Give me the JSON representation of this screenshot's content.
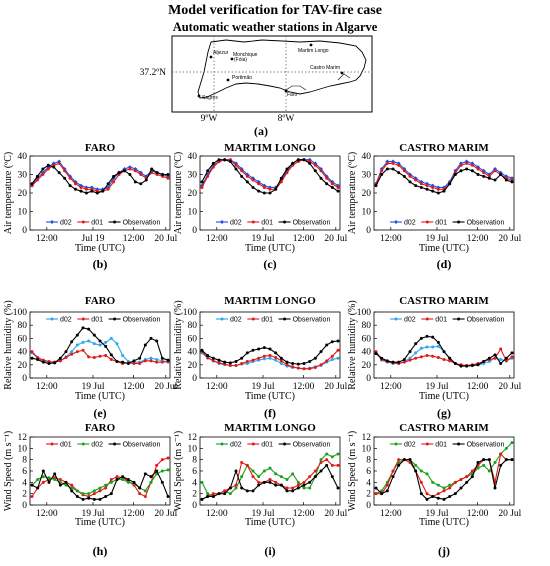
{
  "figure": {
    "title": "Model verification for TAV-fire case",
    "map": {
      "title": "Automatic weather stations in Algarve",
      "lat_label": "37.2ºN",
      "lon_labels": [
        "9ºW",
        "8ºW"
      ],
      "stations": [
        {
          "name": "Aljezur"
        },
        {
          "name": "Monchique"
        },
        {
          "name": "(Fóia)"
        },
        {
          "name": "Martim Longo"
        },
        {
          "name": "Castro Marim"
        },
        {
          "name": "Portimão"
        },
        {
          "name": "Sagres"
        },
        {
          "name": "Faro"
        }
      ],
      "letter": "(a)"
    }
  },
  "colors": {
    "d02": "#1f4fe0",
    "d01": "#e01a1a",
    "observation": "#000000",
    "d02_rh": "#2aa7ef",
    "d02_wind": "#1aa11a"
  },
  "chart_data": [
    {
      "id": "b",
      "type": "line",
      "title": "FARO",
      "letter": "(b)",
      "xlabel": "Time (UTC)",
      "ylabel": "Air temperature (ºC)",
      "x_ticks": [
        "12:00",
        "Jul 19",
        "12:00",
        "20 Jul"
      ],
      "ylim": [
        0,
        40
      ],
      "y_ticks": [
        "0",
        "10",
        "20",
        "30",
        "40"
      ],
      "legend": "bottom",
      "legend_items": [
        "d02",
        "d01",
        "Observation"
      ],
      "series": [
        {
          "name": "d02",
          "color": "d02",
          "values": [
            24,
            28,
            31,
            34,
            36,
            37,
            33,
            29,
            26,
            24,
            23,
            23,
            22,
            22,
            23,
            28,
            31,
            33,
            34,
            33,
            31,
            29,
            32,
            31,
            30,
            29
          ]
        },
        {
          "name": "d01",
          "color": "d01",
          "values": [
            24,
            27,
            30,
            33,
            35,
            36,
            32,
            28,
            25,
            23,
            22,
            22,
            21,
            21,
            22,
            26,
            30,
            32,
            33,
            32,
            30,
            28,
            31,
            30,
            29,
            28
          ]
        },
        {
          "name": "Observation",
          "color": "observation",
          "values": [
            25,
            29,
            33,
            35,
            34,
            31,
            28,
            24,
            22,
            21,
            20,
            21,
            20,
            21,
            25,
            29,
            31,
            32,
            30,
            26,
            25,
            27,
            33,
            31,
            30,
            30
          ]
        }
      ]
    },
    {
      "id": "c",
      "type": "line",
      "title": "MARTIM LONGO",
      "letter": "(c)",
      "xlabel": "Time (UTC)",
      "ylabel": "Air temperature (ºC)",
      "x_ticks": [
        "12:00",
        "19 Jul",
        "12:00",
        "20 Jul"
      ],
      "ylim": [
        0,
        40
      ],
      "y_ticks": [
        "0",
        "10",
        "20",
        "30",
        "40"
      ],
      "legend": "bottom",
      "legend_items": [
        "d02",
        "d01",
        "Observation"
      ],
      "series": [
        {
          "name": "d02",
          "color": "d02",
          "values": [
            24,
            30,
            35,
            37,
            38,
            38,
            36,
            33,
            30,
            28,
            26,
            24,
            23,
            23,
            27,
            32,
            36,
            38,
            38,
            38,
            36,
            33,
            29,
            26,
            24
          ]
        },
        {
          "name": "d01",
          "color": "d01",
          "values": [
            23,
            29,
            34,
            37,
            38,
            38,
            35,
            32,
            29,
            27,
            25,
            23,
            22,
            22,
            26,
            31,
            35,
            37,
            38,
            37,
            35,
            32,
            28,
            25,
            23
          ]
        },
        {
          "name": "Observation",
          "color": "observation",
          "values": [
            26,
            32,
            36,
            38,
            38,
            37,
            33,
            29,
            26,
            23,
            21,
            20,
            20,
            22,
            28,
            33,
            36,
            38,
            38,
            36,
            32,
            28,
            25,
            23,
            21
          ]
        }
      ]
    },
    {
      "id": "d",
      "type": "line",
      "title": "CASTRO MARIM",
      "letter": "(d)",
      "xlabel": "Time (UTC)",
      "ylabel": "Air temperature (ºC)",
      "x_ticks": [
        "12:00",
        "19 Jul",
        "12:00",
        "20 Jul"
      ],
      "ylim": [
        0,
        40
      ],
      "y_ticks": [
        "0",
        "10",
        "20",
        "30",
        "40"
      ],
      "legend": "bottom",
      "legend_items": [
        "d02",
        "d01",
        "Observation"
      ],
      "series": [
        {
          "name": "d02",
          "color": "d02",
          "values": [
            25,
            33,
            37,
            37,
            36,
            33,
            30,
            28,
            26,
            25,
            24,
            23,
            23,
            26,
            32,
            36,
            37,
            36,
            34,
            32,
            30,
            33,
            31,
            29,
            28
          ]
        },
        {
          "name": "d01",
          "color": "d01",
          "values": [
            25,
            32,
            36,
            36,
            35,
            32,
            29,
            27,
            25,
            24,
            23,
            22,
            22,
            25,
            31,
            35,
            36,
            35,
            33,
            31,
            29,
            32,
            30,
            28,
            27
          ]
        },
        {
          "name": "Observation",
          "color": "observation",
          "values": [
            24,
            30,
            33,
            33,
            31,
            29,
            26,
            24,
            23,
            22,
            21,
            20,
            21,
            25,
            30,
            32,
            33,
            32,
            30,
            29,
            28,
            27,
            30,
            27,
            26
          ]
        }
      ]
    },
    {
      "id": "e",
      "type": "line",
      "title": "FARO",
      "letter": "(e)",
      "xlabel": "Time (UTC)",
      "ylabel": "Relative humidity (%)",
      "x_ticks": [
        "12:00",
        "19 Jul",
        "12:00",
        "20 Jul"
      ],
      "ylim": [
        0,
        100
      ],
      "y_ticks": [
        "0",
        "20",
        "40",
        "60",
        "80",
        "100"
      ],
      "legend": "top",
      "legend_items": [
        "d02",
        "d01",
        "Observation"
      ],
      "series": [
        {
          "name": "d02",
          "color": "d02_rh",
          "values": [
            38,
            30,
            26,
            24,
            24,
            26,
            32,
            40,
            50,
            54,
            56,
            52,
            50,
            54,
            60,
            52,
            34,
            25,
            24,
            24,
            28,
            30,
            28,
            26,
            24
          ]
        },
        {
          "name": "d01",
          "color": "d01",
          "values": [
            40,
            31,
            27,
            25,
            24,
            26,
            31,
            36,
            40,
            42,
            32,
            31,
            33,
            34,
            28,
            25,
            22,
            23,
            22,
            22,
            26,
            26,
            24,
            24,
            25
          ]
        },
        {
          "name": "Observation",
          "color": "observation",
          "values": [
            30,
            28,
            24,
            22,
            23,
            30,
            40,
            55,
            65,
            76,
            74,
            65,
            56,
            48,
            35,
            25,
            24,
            22,
            26,
            30,
            50,
            60,
            56,
            30,
            27
          ]
        }
      ]
    },
    {
      "id": "f",
      "type": "line",
      "title": "MARTIM LONGO",
      "letter": "(f)",
      "xlabel": "Time (UTC)",
      "ylabel": "Relative humidity (%)",
      "x_ticks": [
        "12:00",
        "19 Jul",
        "12:00",
        "20 Jul"
      ],
      "ylim": [
        0,
        100
      ],
      "y_ticks": [
        "0",
        "20",
        "40",
        "60",
        "80",
        "100"
      ],
      "legend": "top",
      "legend_items": [
        "d02",
        "d01",
        "Observation"
      ],
      "series": [
        {
          "name": "d02",
          "color": "d02_rh",
          "values": [
            38,
            30,
            26,
            22,
            20,
            19,
            19,
            21,
            22,
            25,
            27,
            29,
            30,
            27,
            22,
            18,
            16,
            15,
            14,
            15,
            17,
            19,
            24,
            28,
            30
          ]
        },
        {
          "name": "d01",
          "color": "d01",
          "values": [
            40,
            31,
            26,
            23,
            21,
            19,
            19,
            22,
            25,
            27,
            30,
            33,
            34,
            31,
            26,
            20,
            17,
            15,
            14,
            14,
            16,
            20,
            26,
            33,
            42
          ]
        },
        {
          "name": "Observation",
          "color": "observation",
          "values": [
            42,
            34,
            30,
            27,
            24,
            23,
            25,
            30,
            38,
            42,
            44,
            46,
            44,
            38,
            30,
            24,
            22,
            21,
            22,
            25,
            30,
            40,
            50,
            55,
            56
          ]
        }
      ]
    },
    {
      "id": "g",
      "type": "line",
      "title": "CASTRO MARIM",
      "letter": "(g)",
      "xlabel": "Time (UTC)",
      "ylabel": "Relative humidity (%)",
      "x_ticks": [
        "12:00",
        "19 Jul",
        "12:00",
        "20 Jul"
      ],
      "ylim": [
        0,
        100
      ],
      "y_ticks": [
        "0",
        "20",
        "40",
        "60",
        "80",
        "100"
      ],
      "legend": "top",
      "legend_items": [
        "d02",
        "d01",
        "Observation"
      ],
      "series": [
        {
          "name": "d02",
          "color": "d02_rh",
          "values": [
            38,
            27,
            24,
            22,
            22,
            25,
            30,
            38,
            45,
            47,
            47,
            48,
            40,
            30,
            22,
            19,
            18,
            19,
            20,
            22,
            25,
            30,
            28,
            26,
            30
          ]
        },
        {
          "name": "d01",
          "color": "d01",
          "values": [
            40,
            28,
            25,
            23,
            22,
            24,
            27,
            30,
            32,
            34,
            33,
            31,
            28,
            26,
            22,
            20,
            19,
            20,
            22,
            25,
            28,
            30,
            44,
            26,
            32
          ]
        },
        {
          "name": "Observation",
          "color": "observation",
          "values": [
            37,
            30,
            26,
            24,
            24,
            28,
            40,
            52,
            60,
            63,
            62,
            54,
            40,
            30,
            22,
            18,
            18,
            19,
            20,
            25,
            30,
            35,
            22,
            30,
            38
          ]
        }
      ]
    },
    {
      "id": "h",
      "type": "line",
      "title": "FARO",
      "letter": "(h)",
      "xlabel": "Time (UTC)",
      "ylabel": "Wind Speed (m s⁻¹)",
      "x_ticks": [
        "12:00",
        "19 Jul",
        "12:00",
        "20 Jul"
      ],
      "ylim": [
        0,
        12
      ],
      "y_ticks": [
        "0",
        "2",
        "4",
        "6",
        "8",
        "10",
        "12"
      ],
      "legend": "top",
      "legend_items": [
        "d01",
        "d02",
        "Observation"
      ],
      "series": [
        {
          "name": "d01",
          "color": "d01",
          "values": [
            1.5,
            3,
            4,
            4.5,
            4.8,
            4.5,
            4,
            3.5,
            2.5,
            1.8,
            1.5,
            2,
            2.5,
            3,
            4.5,
            5,
            4.8,
            4.2,
            3.5,
            2,
            1.5,
            4,
            7,
            8,
            8.3
          ]
        },
        {
          "name": "d02",
          "color": "d02_wind",
          "values": [
            3.5,
            4.5,
            5,
            4.8,
            4.5,
            4,
            3.5,
            3,
            2.5,
            2,
            2,
            2.5,
            3,
            3.5,
            4,
            4.5,
            4.5,
            4,
            3.8,
            3,
            2.5,
            4,
            5.5,
            6,
            6.2
          ]
        },
        {
          "name": "Observation",
          "color": "observation",
          "values": [
            3.5,
            3,
            6,
            4,
            5.5,
            3.5,
            4,
            2.5,
            1.5,
            1,
            1.2,
            1,
            1,
            1.5,
            2,
            4.5,
            5,
            4.5,
            4,
            3,
            5.5,
            5,
            6,
            4,
            1.5
          ]
        }
      ]
    },
    {
      "id": "i",
      "type": "line",
      "title": "MARTIM LONGO",
      "letter": "(i)",
      "xlabel": "Time (UTC)",
      "ylabel": "Wind Speed (m s⁻¹)",
      "x_ticks": [
        "12:00",
        "19 Jul",
        "12:00",
        "20 Jul"
      ],
      "ylim": [
        0,
        12
      ],
      "y_ticks": [
        "0",
        "2",
        "4",
        "6",
        "8",
        "10",
        "12"
      ],
      "legend": "top",
      "legend_items": [
        "d02",
        "d01",
        "Observation"
      ],
      "series": [
        {
          "name": "d02",
          "color": "d02_wind",
          "values": [
            4,
            2,
            1.5,
            2,
            2.5,
            2,
            3,
            5,
            7,
            6,
            5,
            6,
            6.5,
            5.5,
            5,
            4.5,
            5.5,
            4,
            3,
            3,
            5,
            8,
            9,
            8.5,
            9
          ]
        },
        {
          "name": "d01",
          "color": "d01",
          "values": [
            1,
            1.5,
            2,
            2,
            2.5,
            3,
            3.5,
            7.5,
            7,
            5,
            4,
            4,
            4.5,
            4,
            3.5,
            3,
            3,
            3.5,
            4,
            5,
            6,
            7.5,
            8,
            7,
            7
          ]
        },
        {
          "name": "Observation",
          "color": "observation",
          "values": [
            1,
            1.5,
            1.5,
            2,
            2,
            3,
            6,
            3,
            2.5,
            2.5,
            3.5,
            4,
            4,
            3.5,
            3.5,
            2.5,
            2.5,
            3,
            3.5,
            4,
            5,
            6,
            7,
            5,
            3
          ]
        }
      ]
    },
    {
      "id": "j",
      "type": "line",
      "title": "CASTRO MARIM",
      "letter": "(j)",
      "xlabel": "Time (UTC)",
      "ylabel": "Wind Speed (m s⁻¹)",
      "x_ticks": [
        "12:00",
        "19 Jul",
        "12:00",
        "20 Jul"
      ],
      "ylim": [
        0,
        12
      ],
      "y_ticks": [
        "0",
        "2",
        "4",
        "6",
        "8",
        "10",
        "12"
      ],
      "legend": "top",
      "legend_items": [
        "d02",
        "d01",
        "Observation"
      ],
      "series": [
        {
          "name": "d02",
          "color": "d02_wind",
          "values": [
            2,
            2.5,
            4,
            6,
            7.5,
            8,
            8,
            7,
            6,
            5.5,
            4,
            3.5,
            3,
            3.5,
            4,
            4.5,
            5,
            5.5,
            6.5,
            7,
            6,
            7.5,
            9,
            10,
            11
          ]
        },
        {
          "name": "d01",
          "color": "d01",
          "values": [
            2,
            2,
            3.5,
            6,
            8,
            8,
            7.5,
            6,
            4,
            2,
            1.5,
            2,
            2.5,
            3,
            4,
            4.5,
            5,
            6,
            7,
            8,
            8,
            4,
            9,
            8,
            8
          ]
        },
        {
          "name": "Observation",
          "color": "observation",
          "values": [
            3,
            2,
            2.5,
            5,
            7,
            8,
            8,
            6,
            2,
            1,
            1.5,
            1.2,
            1,
            1.5,
            2,
            3,
            4,
            5,
            7.5,
            8,
            8,
            3,
            7,
            8,
            8
          ]
        }
      ]
    }
  ]
}
